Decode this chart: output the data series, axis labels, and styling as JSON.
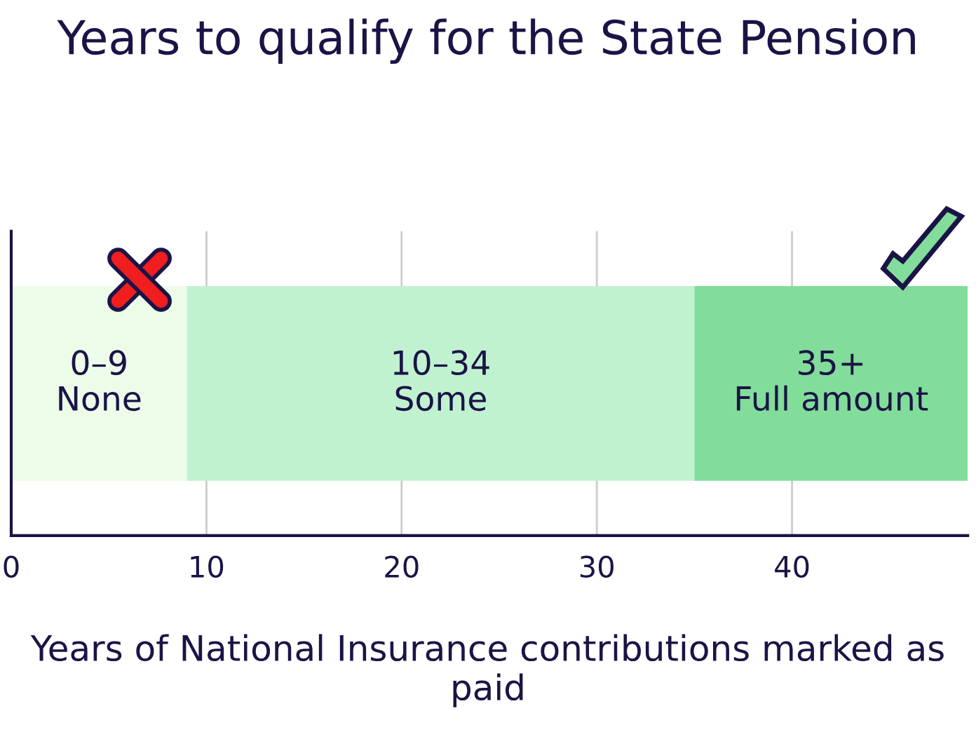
{
  "chart_data": {
    "type": "bar",
    "orientation": "horizontal",
    "stacked": true,
    "title": "Years to qualify for the State Pension",
    "xlabel": "Years of National Insurance contributions marked as paid",
    "categories": [
      null
    ],
    "series": [
      {
        "name": "0–9\nNone",
        "color": "#edfbe9",
        "values": [
          9
        ]
      },
      {
        "name": "10–34\nSome",
        "color": "#c0f2d0",
        "values": [
          26
        ]
      },
      {
        "name": "35+\nFull amount",
        "color": "#82dd9a",
        "values": [
          14
        ]
      }
    ],
    "xlim": [
      0,
      49
    ],
    "xticks": [
      0,
      10,
      20,
      30,
      40
    ],
    "grid": "x",
    "legend": false
  }
}
